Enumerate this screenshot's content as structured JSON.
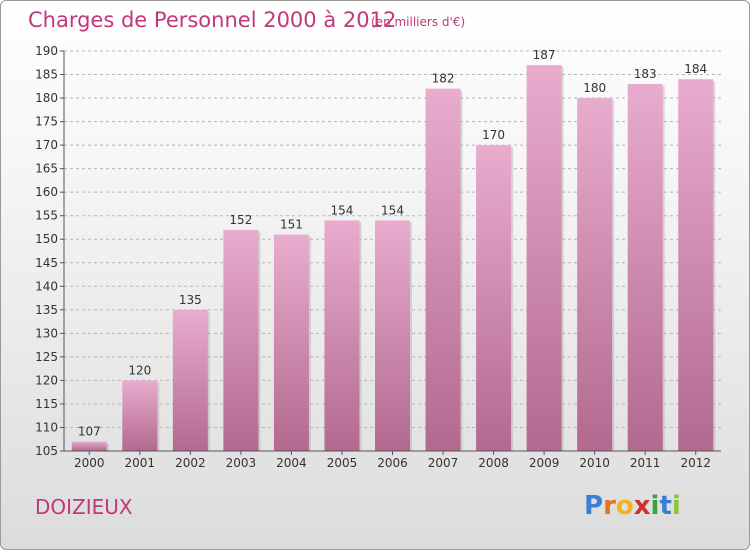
{
  "title": "Charges de Personnel 2000 à 2012",
  "unit": "(en milliers d'€)",
  "commune": "DOIZIEUX",
  "logo": {
    "letters": [
      "P",
      "r",
      "o",
      "x",
      "i",
      "t",
      "i"
    ],
    "colors": [
      "#3a7fd0",
      "#e8731c",
      "#f2b21a",
      "#d0312d",
      "#3aa23a",
      "#3a7fd0",
      "#8cc63e"
    ]
  },
  "colors": {
    "bar": "#c8709e",
    "bar_light": "#e6a9cc",
    "text": "#c0387a",
    "axis": "#555555",
    "grid": "#bbbbbb"
  },
  "chart_data": {
    "type": "bar",
    "categories": [
      "2000",
      "2001",
      "2002",
      "2003",
      "2004",
      "2005",
      "2006",
      "2007",
      "2008",
      "2009",
      "2010",
      "2011",
      "2012"
    ],
    "values": [
      107,
      120,
      135,
      152,
      151,
      154,
      154,
      182,
      170,
      187,
      180,
      183,
      184
    ],
    "ylim": [
      105,
      190
    ],
    "yticks": [
      105,
      110,
      115,
      120,
      125,
      130,
      135,
      140,
      145,
      150,
      155,
      160,
      165,
      170,
      175,
      180,
      185,
      190
    ],
    "grid": true
  }
}
